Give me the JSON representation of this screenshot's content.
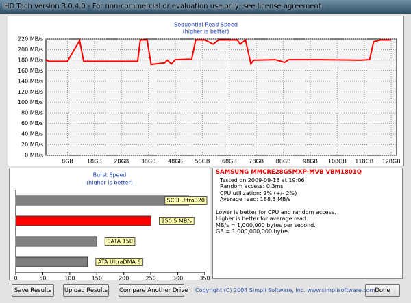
{
  "window": {
    "title": "HD Tach version 3.0.4.0  - For non-commercial or evaluation use only, see license agreement."
  },
  "chart_data": [
    {
      "type": "line",
      "title": "Sequential Read Speed",
      "subtitle": "(higher is better)",
      "color": "#ff0000",
      "grid": true,
      "x": [
        0,
        1,
        8,
        12.5,
        14,
        21,
        34,
        35,
        37.5,
        39,
        44,
        45,
        46.5,
        48,
        53,
        54,
        55.5,
        59,
        62,
        64,
        71,
        72,
        74,
        75,
        76,
        77,
        85,
        88.5,
        90,
        102,
        116.5,
        120,
        121.5,
        124,
        128
      ],
      "values": [
        181,
        178,
        178,
        217,
        178,
        178,
        178,
        218,
        218,
        172,
        175,
        180,
        173,
        181,
        182,
        181,
        218,
        218,
        210,
        218,
        218,
        210,
        218,
        195,
        173,
        180,
        181,
        176,
        181,
        181,
        180,
        181,
        215,
        218,
        218
      ],
      "xlim": [
        0,
        130
      ],
      "xticks": [
        {
          "value": 8,
          "label": "8GB"
        },
        {
          "value": 18,
          "label": "18GB"
        },
        {
          "value": 28,
          "label": "28GB"
        },
        {
          "value": 38,
          "label": "38GB"
        },
        {
          "value": 48,
          "label": "48GB"
        },
        {
          "value": 58,
          "label": "58GB"
        },
        {
          "value": 68,
          "label": "68GB"
        },
        {
          "value": 78,
          "label": "78GB"
        },
        {
          "value": 88,
          "label": "88GB"
        },
        {
          "value": 98,
          "label": "98GB"
        },
        {
          "value": 108,
          "label": "108GB"
        },
        {
          "value": 118,
          "label": "118GB"
        },
        {
          "value": 128,
          "label": "128GB"
        }
      ],
      "ylim": [
        0,
        220
      ],
      "yticks": [
        {
          "value": 0,
          "label": "0 MB/s"
        },
        {
          "value": 20,
          "label": "20 MB/s"
        },
        {
          "value": 40,
          "label": "40 MB/s"
        },
        {
          "value": 60,
          "label": "60 MB/s"
        },
        {
          "value": 80,
          "label": "80 MB/s"
        },
        {
          "value": 100,
          "label": "100 MB/s"
        },
        {
          "value": 120,
          "label": "120 MB/s"
        },
        {
          "value": 140,
          "label": "140 MB/s"
        },
        {
          "value": 160,
          "label": "160 MB/s"
        },
        {
          "value": 180,
          "label": "180 MB/s"
        },
        {
          "value": 200,
          "label": "200 MB/s"
        },
        {
          "value": 220,
          "label": "220 MB/s"
        }
      ]
    },
    {
      "type": "hbar",
      "title": "Burst Speed",
      "subtitle": "(higher is better)",
      "categories": [
        "SCSI Ultra320",
        null,
        "SATA 150",
        "ATA UltraDMA 6"
      ],
      "values": [
        320,
        250.5,
        150,
        133
      ],
      "value_labels": [
        null,
        "250.5 MB/s",
        null,
        null
      ],
      "colors": [
        "#808080",
        "#ff0000",
        "#808080",
        "#808080"
      ],
      "xlim": [
        0,
        350
      ],
      "xticks": [
        0,
        50,
        100,
        150,
        200,
        250,
        300,
        350
      ]
    }
  ],
  "info": {
    "title": "SAMSUNG MMCRE28G5MXP-MVB VBM1801Q",
    "lines": [
      "Tested on 2009-09-18 at 19:06",
      "Random access: 0.3ms",
      "CPU utilization: 2% (+/- 2%)",
      "Average read: 188.3 MB/s"
    ],
    "notes": [
      "Lower is better for CPU and random access.",
      "Higher is better for average read.",
      "MB/s = 1,000,000 bytes per second.",
      "GB = 1,000,000,000 bytes."
    ]
  },
  "buttons": [
    "Save Results",
    "Upload Results",
    "Compare Another Drive",
    "Done"
  ],
  "copyright": "Copyright (C) 2004 Simpli Software, Inc. www.simplisoftware.com"
}
